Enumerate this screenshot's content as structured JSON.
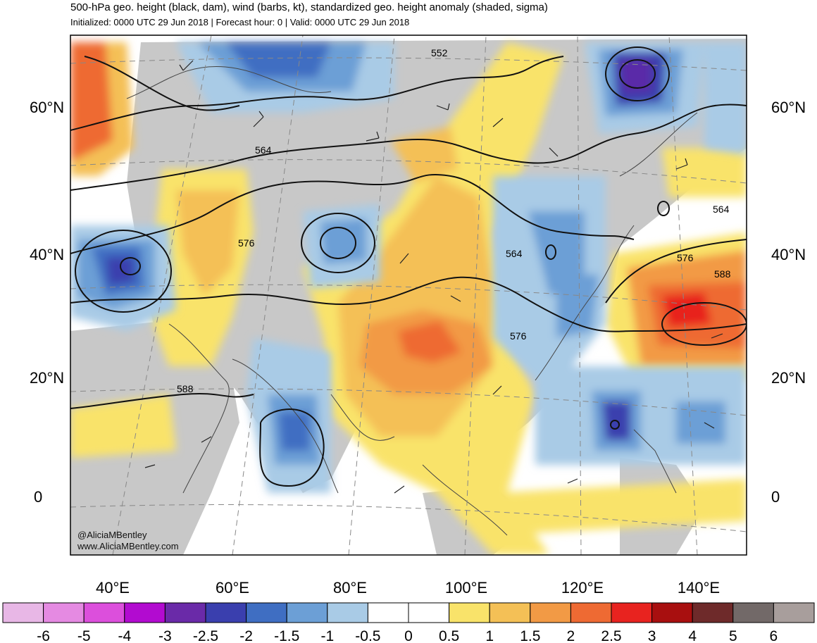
{
  "header": {
    "title": "500-hPa geo. height (black, dam), wind (barbs, kt), standardized geo. height anomaly (shaded, sigma)",
    "subtitle": "Initialized: 0000 UTC 29 Jun 2018 | Forecast hour: 0 | Valid: 0000 UTC 29 Jun 2018"
  },
  "map": {
    "region": "Asia and western Pacific",
    "projection": "lambert-conformal",
    "lat_labels_left": [
      "60°N",
      "40°N",
      "20°N",
      "0"
    ],
    "lat_labels_right": [
      "60°N",
      "40°N",
      "20°N",
      "0"
    ],
    "lon_labels": [
      "40°E",
      "60°E",
      "80°E",
      "100°E",
      "120°E",
      "140°E"
    ],
    "contour_labels": [
      "552",
      "564",
      "576",
      "564",
      "564",
      "576",
      "588",
      "576",
      "588"
    ],
    "credit_handle": "@AliciaMBentley",
    "credit_url": "www.AliciaMBentley.com",
    "colors": {
      "neg_05_1": "#a9cbe6",
      "neg_1_15": "#6c9fd6",
      "neg_15_2": "#3f6ec2",
      "neg_2_25": "#3a3fae",
      "neg_25_3": "#5a2aa8",
      "pos_05_1": "#f9e36a",
      "pos_1_15": "#f4c056",
      "pos_15_2": "#f29a45",
      "pos_2_25": "#ee6a33",
      "pos_25_3": "#e8231f",
      "land": "#c8c8c8"
    }
  },
  "colorbar": {
    "tick_labels": [
      "-6",
      "-5",
      "-4",
      "-3",
      "-2.5",
      "-2",
      "-1.5",
      "-1",
      "-0.5",
      "0",
      "0.5",
      "1",
      "1.5",
      "2",
      "2.5",
      "3",
      "4",
      "5",
      "6"
    ],
    "colors": [
      "#e8b7e6",
      "#e58ae2",
      "#dc4fdc",
      "#b20bd0",
      "#6a2aa8",
      "#3a3fae",
      "#3f6ec2",
      "#6c9fd6",
      "#a9cbe6",
      "#ffffff",
      "#ffffff",
      "#f9e36a",
      "#f4c056",
      "#f29a45",
      "#ee6a33",
      "#e8231f",
      "#a80f0f",
      "#6e2a2a",
      "#726968",
      "#a89e9c"
    ]
  }
}
